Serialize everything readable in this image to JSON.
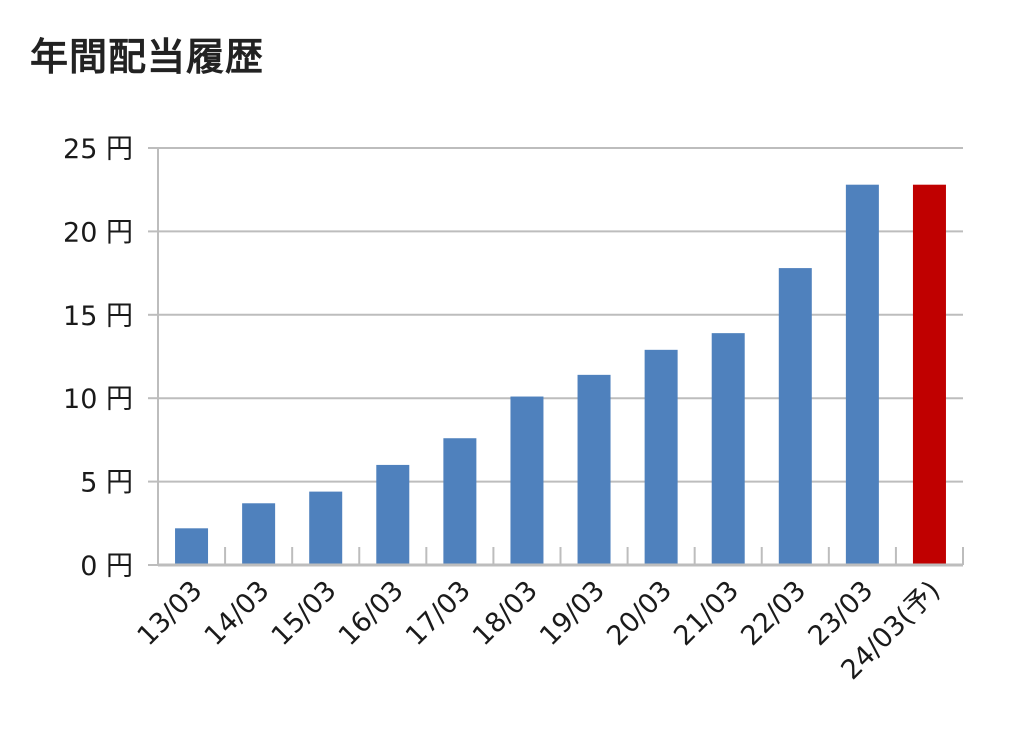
{
  "chart_data": {
    "type": "bar",
    "title": "年間配当履歴",
    "categories": [
      "13/03",
      "14/03",
      "15/03",
      "16/03",
      "17/03",
      "18/03",
      "19/03",
      "20/03",
      "21/03",
      "22/03",
      "23/03",
      "24/03(予)"
    ],
    "values": [
      2.2,
      3.7,
      4.4,
      6.0,
      7.6,
      10.1,
      11.4,
      12.9,
      13.9,
      17.8,
      22.8,
      22.8
    ],
    "bar_colors": [
      "#4f81bd",
      "#4f81bd",
      "#4f81bd",
      "#4f81bd",
      "#4f81bd",
      "#4f81bd",
      "#4f81bd",
      "#4f81bd",
      "#4f81bd",
      "#4f81bd",
      "#4f81bd",
      "#c00000"
    ],
    "ylim": [
      0,
      25
    ],
    "yticks": [
      0,
      5,
      10,
      15,
      20,
      25
    ],
    "ytick_labels": [
      "0 円",
      "5 円",
      "10 円",
      "15 円",
      "20 円",
      "25 円"
    ],
    "xlabel": "",
    "ylabel": "",
    "grid": true,
    "legend": "none"
  }
}
